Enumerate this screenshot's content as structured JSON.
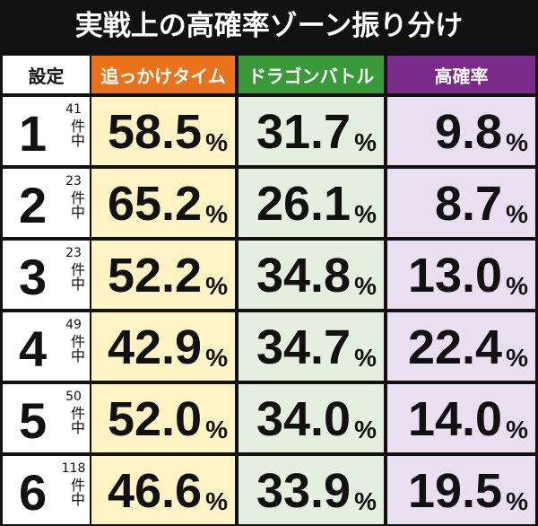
{
  "title": "実戦上の高確率ゾーン振り分け",
  "table": {
    "header": [
      "設定",
      "追っかけタイム",
      "ドラゴンバトル",
      "高確率"
    ],
    "unit": "%",
    "count_suffix": "件中",
    "rows": [
      {
        "setting": "1",
        "count": "41",
        "values": [
          "58.5",
          "31.7",
          "9.8"
        ]
      },
      {
        "setting": "2",
        "count": "23",
        "values": [
          "65.2",
          "26.1",
          "8.7"
        ]
      },
      {
        "setting": "3",
        "count": "23",
        "values": [
          "52.2",
          "34.8",
          "13.0"
        ]
      },
      {
        "setting": "4",
        "count": "49",
        "values": [
          "42.9",
          "34.7",
          "22.4"
        ]
      },
      {
        "setting": "5",
        "count": "50",
        "values": [
          "52.0",
          "34.0",
          "14.0"
        ]
      },
      {
        "setting": "6",
        "count": "118",
        "values": [
          "46.6",
          "33.9",
          "19.5"
        ]
      }
    ]
  }
}
